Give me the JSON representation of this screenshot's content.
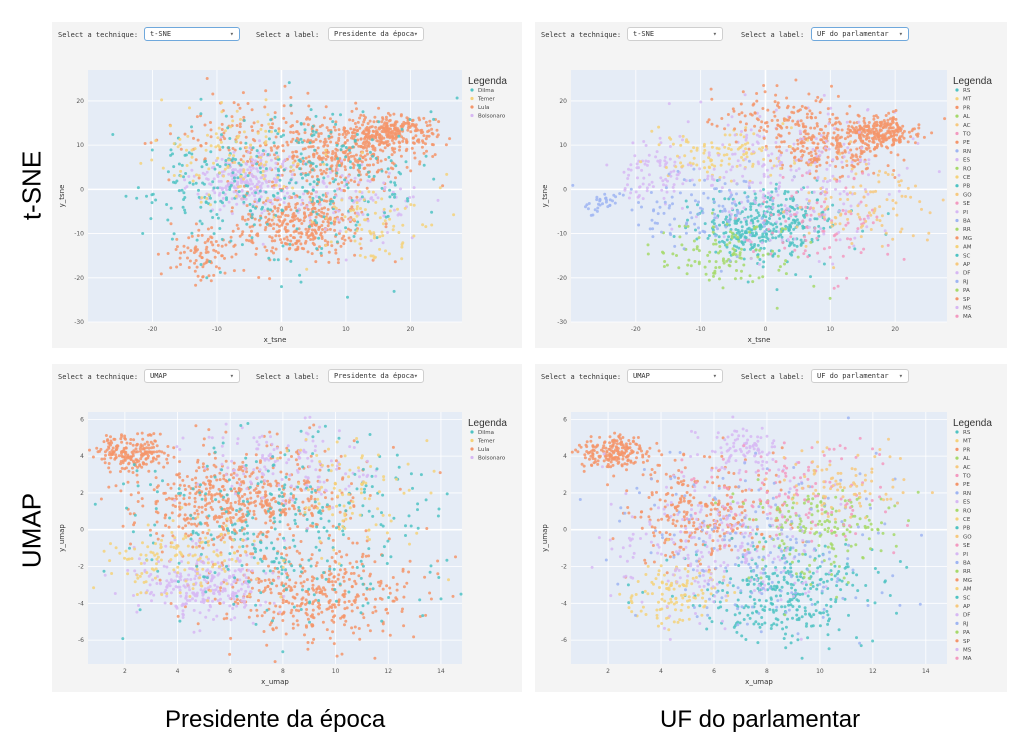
{
  "row_labels": [
    "t-SNE",
    "UMAP"
  ],
  "col_labels": [
    "Presidente da época",
    "UF do parlamentar"
  ],
  "controls": {
    "technique_label": "Select a technique:",
    "label_label": "Select a label:",
    "options": {
      "tsne": "t-SNE",
      "umap": "UMAP",
      "presidente": "Presidente da época",
      "uf": "UF do parlamentar"
    }
  },
  "colors": {
    "panel_bg": "#f4f4f4",
    "plot_bg": "#e5ecf6",
    "select_focus": "#6fa8dc"
  },
  "chart_data": [
    {
      "type": "scatter",
      "technique": "t-SNE",
      "label_by": "Presidente da época",
      "xlabel": "x_tsne",
      "ylabel": "y_tsne",
      "xlim": [
        -30,
        28
      ],
      "ylim": [
        -30,
        27
      ],
      "xticks": [
        -20,
        -10,
        0,
        10,
        20
      ],
      "yticks": [
        -30,
        -20,
        -10,
        0,
        10,
        20
      ],
      "legend_title": "Legenda",
      "legend_position": "top-right",
      "series": [
        {
          "name": "Dilma",
          "color": "#4fc3c3"
        },
        {
          "name": "Temer",
          "color": "#f5d27a"
        },
        {
          "name": "Lula",
          "color": "#f4956a"
        },
        {
          "name": "Bolsonaro",
          "color": "#d7b8f3"
        }
      ],
      "clusters": [
        {
          "series": "Lula",
          "cx": 17,
          "cy": 13,
          "sx": 3.5,
          "sy": 1.8,
          "n": 260
        },
        {
          "series": "Lula",
          "cx": 10,
          "cy": 8,
          "sx": 5,
          "sy": 4,
          "n": 300
        },
        {
          "series": "Lula",
          "cx": 3,
          "cy": -8,
          "sx": 5,
          "sy": 4,
          "n": 360
        },
        {
          "series": "Lula",
          "cx": -12,
          "cy": -15,
          "sx": 3,
          "sy": 3,
          "n": 90
        },
        {
          "series": "Lula",
          "cx": -2,
          "cy": 12,
          "sx": 8,
          "sy": 5,
          "n": 180
        },
        {
          "series": "Bolsonaro",
          "cx": -5,
          "cy": 2,
          "sx": 4,
          "sy": 3,
          "n": 260
        },
        {
          "series": "Bolsonaro",
          "cx": 12,
          "cy": -3,
          "sx": 5,
          "sy": 4,
          "n": 90
        },
        {
          "series": "Dilma",
          "cx": 5,
          "cy": 3,
          "sx": 9,
          "sy": 9,
          "n": 260
        },
        {
          "series": "Dilma",
          "cx": -12,
          "cy": 0,
          "sx": 6,
          "sy": 7,
          "n": 110
        },
        {
          "series": "Temer",
          "cx": -8,
          "cy": 8,
          "sx": 6,
          "sy": 5,
          "n": 110
        },
        {
          "series": "Temer",
          "cx": 14,
          "cy": -8,
          "sx": 5,
          "sy": 5,
          "n": 80
        }
      ]
    },
    {
      "type": "scatter",
      "technique": "t-SNE",
      "label_by": "UF do parlamentar",
      "xlabel": "x_tsne",
      "ylabel": "y_tsne",
      "xlim": [
        -30,
        28
      ],
      "ylim": [
        -30,
        27
      ],
      "xticks": [
        -20,
        -10,
        0,
        10,
        20
      ],
      "yticks": [
        -30,
        -20,
        -10,
        0,
        10,
        20
      ],
      "legend_title": "Legenda",
      "legend_position": "top-right",
      "series": [
        {
          "name": "RS",
          "color": "#4fc3c3"
        },
        {
          "name": "MT",
          "color": "#f5d27a"
        },
        {
          "name": "PR",
          "color": "#f4956a"
        },
        {
          "name": "AL",
          "color": "#a6d96a"
        },
        {
          "name": "AC",
          "color": "#f7c97e"
        },
        {
          "name": "TO",
          "color": "#f39ac0"
        },
        {
          "name": "PE",
          "color": "#f4956a"
        },
        {
          "name": "RN",
          "color": "#9fb5f2"
        },
        {
          "name": "ES",
          "color": "#d7b8f3"
        },
        {
          "name": "RO",
          "color": "#a6d96a"
        },
        {
          "name": "CE",
          "color": "#f5d27a"
        },
        {
          "name": "PB",
          "color": "#4fc3c3"
        },
        {
          "name": "GO",
          "color": "#f7c97e"
        },
        {
          "name": "SE",
          "color": "#f39ac0"
        },
        {
          "name": "PI",
          "color": "#d7b8f3"
        },
        {
          "name": "BA",
          "color": "#9fb5f2"
        },
        {
          "name": "RR",
          "color": "#a6d96a"
        },
        {
          "name": "MG",
          "color": "#f4956a"
        },
        {
          "name": "AM",
          "color": "#f5d27a"
        },
        {
          "name": "SC",
          "color": "#4fc3c3"
        },
        {
          "name": "AP",
          "color": "#f7c97e"
        },
        {
          "name": "DF",
          "color": "#d7b8f3"
        },
        {
          "name": "RJ",
          "color": "#9fb5f2"
        },
        {
          "name": "PA",
          "color": "#a6d96a"
        },
        {
          "name": "SP",
          "color": "#f4956a"
        },
        {
          "name": "MS",
          "color": "#d7b8f3"
        },
        {
          "name": "MA",
          "color": "#f39ac0"
        }
      ],
      "clusters": [
        {
          "series": "PR",
          "cx": 17,
          "cy": 13,
          "sx": 3.5,
          "sy": 1.8,
          "n": 250
        },
        {
          "series": "SP",
          "cx": 10,
          "cy": 9,
          "sx": 5,
          "sy": 3,
          "n": 200
        },
        {
          "series": "RS",
          "cx": 0,
          "cy": -8,
          "sx": 5,
          "sy": 4,
          "n": 380
        },
        {
          "series": "ES",
          "cx": -17,
          "cy": 4,
          "sx": 3,
          "sy": 3,
          "n": 80
        },
        {
          "series": "RN",
          "cx": -25,
          "cy": -3,
          "sx": 1.2,
          "sy": 1.2,
          "n": 30
        },
        {
          "series": "AL",
          "cx": -5,
          "cy": -15,
          "sx": 6,
          "sy": 4,
          "n": 120
        },
        {
          "series": "MT",
          "cx": -7,
          "cy": 8,
          "sx": 5,
          "sy": 3,
          "n": 110
        },
        {
          "series": "TO",
          "cx": 8,
          "cy": -8,
          "sx": 6,
          "sy": 6,
          "n": 100
        },
        {
          "series": "PI",
          "cx": 3,
          "cy": 3,
          "sx": 9,
          "sy": 9,
          "n": 260
        },
        {
          "series": "MG",
          "cx": 2,
          "cy": 17,
          "sx": 6,
          "sy": 3,
          "n": 120
        },
        {
          "series": "BA",
          "cx": -10,
          "cy": -5,
          "sx": 6,
          "sy": 5,
          "n": 110
        },
        {
          "series": "GO",
          "cx": 15,
          "cy": -3,
          "sx": 5,
          "sy": 5,
          "n": 100
        }
      ]
    },
    {
      "type": "scatter",
      "technique": "UMAP",
      "label_by": "Presidente da época",
      "xlabel": "x_umap",
      "ylabel": "y_umap",
      "xlim": [
        0.6,
        14.8
      ],
      "ylim": [
        -7.3,
        6.4
      ],
      "xticks": [
        2,
        4,
        6,
        8,
        10,
        12,
        14
      ],
      "yticks": [
        -6,
        -4,
        -2,
        0,
        2,
        4,
        6
      ],
      "legend_title": "Legenda",
      "legend_position": "top-right",
      "series": [
        {
          "name": "Dilma",
          "color": "#4fc3c3"
        },
        {
          "name": "Temer",
          "color": "#f5d27a"
        },
        {
          "name": "Lula",
          "color": "#f4956a"
        },
        {
          "name": "Bolsonaro",
          "color": "#d7b8f3"
        }
      ],
      "clusters": [
        {
          "series": "Lula",
          "cx": 2.3,
          "cy": 4.2,
          "sx": 0.7,
          "sy": 0.5,
          "n": 200
        },
        {
          "series": "Lula",
          "cx": 5.5,
          "cy": 1.5,
          "sx": 1.5,
          "sy": 1.2,
          "n": 360
        },
        {
          "series": "Lula",
          "cx": 9,
          "cy": -3.5,
          "sx": 2,
          "sy": 1.3,
          "n": 420
        },
        {
          "series": "Lula",
          "cx": 8,
          "cy": 2,
          "sx": 1.8,
          "sy": 1.5,
          "n": 200
        },
        {
          "series": "Bolsonaro",
          "cx": 5,
          "cy": -3,
          "sx": 1.2,
          "sy": 1,
          "n": 280
        },
        {
          "series": "Bolsonaro",
          "cx": 8,
          "cy": 3.5,
          "sx": 1.8,
          "sy": 1.2,
          "n": 150
        },
        {
          "series": "Dilma",
          "cx": 8,
          "cy": 0,
          "sx": 3,
          "sy": 2.5,
          "n": 340
        },
        {
          "series": "Temer",
          "cx": 4,
          "cy": -1.5,
          "sx": 1.5,
          "sy": 1.2,
          "n": 140
        },
        {
          "series": "Temer",
          "cx": 10.5,
          "cy": 2,
          "sx": 1.5,
          "sy": 1.5,
          "n": 90
        }
      ]
    },
    {
      "type": "scatter",
      "technique": "UMAP",
      "label_by": "UF do parlamentar",
      "xlabel": "x_umap",
      "ylabel": "y_umap",
      "xlim": [
        0.6,
        14.8
      ],
      "ylim": [
        -7.3,
        6.4
      ],
      "xticks": [
        2,
        4,
        6,
        8,
        10,
        12,
        14
      ],
      "yticks": [
        -6,
        -4,
        -2,
        0,
        2,
        4,
        6
      ],
      "legend_title": "Legenda",
      "legend_position": "top-right",
      "series": [
        {
          "name": "RS",
          "color": "#4fc3c3"
        },
        {
          "name": "MT",
          "color": "#f5d27a"
        },
        {
          "name": "PR",
          "color": "#f4956a"
        },
        {
          "name": "AL",
          "color": "#a6d96a"
        },
        {
          "name": "AC",
          "color": "#f7c97e"
        },
        {
          "name": "TO",
          "color": "#f39ac0"
        },
        {
          "name": "PE",
          "color": "#f4956a"
        },
        {
          "name": "RN",
          "color": "#9fb5f2"
        },
        {
          "name": "ES",
          "color": "#d7b8f3"
        },
        {
          "name": "RO",
          "color": "#a6d96a"
        },
        {
          "name": "CE",
          "color": "#f5d27a"
        },
        {
          "name": "PB",
          "color": "#4fc3c3"
        },
        {
          "name": "GO",
          "color": "#f7c97e"
        },
        {
          "name": "SE",
          "color": "#f39ac0"
        },
        {
          "name": "PI",
          "color": "#d7b8f3"
        },
        {
          "name": "BA",
          "color": "#9fb5f2"
        },
        {
          "name": "RR",
          "color": "#a6d96a"
        },
        {
          "name": "MG",
          "color": "#f4956a"
        },
        {
          "name": "AM",
          "color": "#f5d27a"
        },
        {
          "name": "SC",
          "color": "#4fc3c3"
        },
        {
          "name": "AP",
          "color": "#f7c97e"
        },
        {
          "name": "DF",
          "color": "#d7b8f3"
        },
        {
          "name": "RJ",
          "color": "#9fb5f2"
        },
        {
          "name": "PA",
          "color": "#a6d96a"
        },
        {
          "name": "SP",
          "color": "#f4956a"
        },
        {
          "name": "MS",
          "color": "#d7b8f3"
        },
        {
          "name": "MA",
          "color": "#f39ac0"
        }
      ],
      "clusters": [
        {
          "series": "PR",
          "cx": 2.3,
          "cy": 4.2,
          "sx": 0.7,
          "sy": 0.5,
          "n": 200
        },
        {
          "series": "SP",
          "cx": 5.5,
          "cy": 1,
          "sx": 1.5,
          "sy": 1.5,
          "n": 280
        },
        {
          "series": "RS",
          "cx": 8.5,
          "cy": -3.5,
          "sx": 1.8,
          "sy": 1.3,
          "n": 320
        },
        {
          "series": "ES",
          "cx": 7,
          "cy": 4.5,
          "sx": 0.8,
          "sy": 0.6,
          "n": 90
        },
        {
          "series": "AL",
          "cx": 10,
          "cy": 0,
          "sx": 1.5,
          "sy": 1.5,
          "n": 180
        },
        {
          "series": "MT",
          "cx": 4.5,
          "cy": -3.5,
          "sx": 1,
          "sy": 0.8,
          "n": 120
        },
        {
          "series": "PI",
          "cx": 6,
          "cy": -1,
          "sx": 2,
          "sy": 2,
          "n": 250
        },
        {
          "series": "TO",
          "cx": 9,
          "cy": 2,
          "sx": 2,
          "sy": 1.5,
          "n": 130
        },
        {
          "series": "BA",
          "cx": 8,
          "cy": -1,
          "sx": 2.5,
          "sy": 2.5,
          "n": 200
        },
        {
          "series": "GO",
          "cx": 11,
          "cy": 2.5,
          "sx": 1.2,
          "sy": 1,
          "n": 90
        }
      ]
    }
  ]
}
